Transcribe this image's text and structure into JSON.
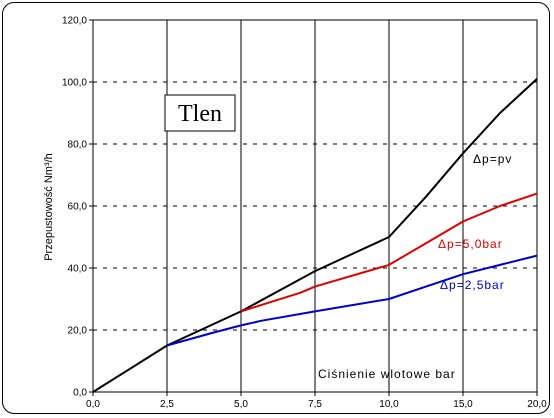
{
  "chart_data": {
    "type": "line",
    "title": "",
    "ylabel": "Przepustowość Nm³/h",
    "xlabel_annotation": "Ciśnienie wlotowe bar",
    "box_label": "Tlen",
    "xlim": [
      0,
      20
    ],
    "ylim": [
      0,
      120
    ],
    "x_ticks": [
      "0,0",
      "2,5",
      "5,0",
      "7,5",
      "10,0",
      "15,0",
      "20,0"
    ],
    "y_ticks": [
      "0,0",
      "20,0",
      "40,0",
      "60,0",
      "80,0",
      "100,0",
      "120,0"
    ],
    "grid": {
      "vertical": "solid",
      "horizontal": "dashed"
    },
    "series": [
      {
        "label": "Δp=pv",
        "color": "#000000",
        "points": [
          [
            0,
            0
          ],
          [
            2.5,
            15
          ],
          [
            5,
            26
          ],
          [
            7.5,
            39
          ],
          [
            10,
            50
          ],
          [
            12.5,
            63
          ],
          [
            15,
            77
          ],
          [
            17.5,
            90
          ],
          [
            20,
            101
          ]
        ]
      },
      {
        "label": "Δp=5,0bar",
        "color": "#e00000",
        "points": [
          [
            5,
            26
          ],
          [
            6,
            29
          ],
          [
            7,
            32
          ],
          [
            7.5,
            34
          ],
          [
            10,
            41
          ],
          [
            12.5,
            48
          ],
          [
            15,
            55
          ],
          [
            17.5,
            60
          ],
          [
            20,
            64
          ]
        ]
      },
      {
        "label": "Δp=2,5bar",
        "color": "#0000cc",
        "points": [
          [
            2.5,
            15
          ],
          [
            4,
            19
          ],
          [
            5,
            21.5
          ],
          [
            5.7,
            23
          ],
          [
            7.5,
            26
          ],
          [
            10,
            30
          ],
          [
            12.5,
            34
          ],
          [
            15,
            38
          ],
          [
            17.5,
            41
          ],
          [
            20,
            44
          ]
        ]
      }
    ]
  }
}
